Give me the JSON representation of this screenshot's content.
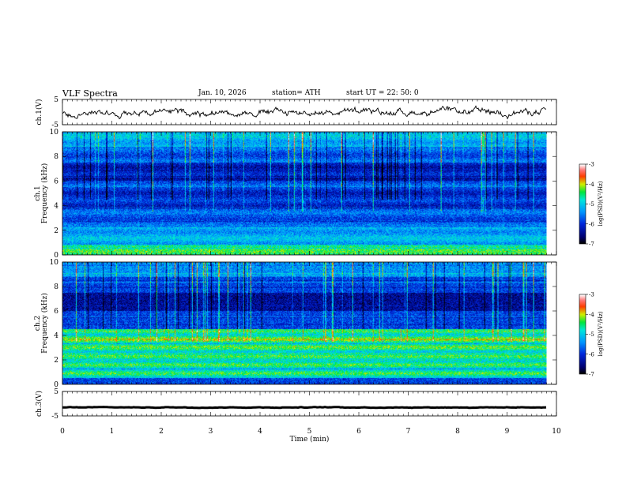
{
  "header": {
    "title": "VLF  Spectra",
    "date": "Jan. 10, 2026",
    "station": "station= ATH",
    "start": "start  UT  =   22: 50: 0"
  },
  "chart_data": {
    "type": "heatmap",
    "xlabel": "Time  (min)",
    "xlim": [
      0,
      10
    ],
    "xticks": [
      "0",
      "1",
      "2",
      "3",
      "4",
      "5",
      "6",
      "7",
      "8",
      "9",
      "10"
    ],
    "panels": [
      {
        "name": "ch1-waveform",
        "type": "line",
        "ylabel": "ch.1(V)",
        "ylim": [
          -5,
          5
        ],
        "yticks": [
          "5",
          "-5"
        ],
        "mean": 0,
        "amplitude": 1.4
      },
      {
        "name": "ch1-spectrogram",
        "type": "heatmap",
        "ylabel_top": "ch.1",
        "ylabel": "Frequency  (kHz)",
        "ylim": [
          0,
          10
        ],
        "yticks": [
          "0",
          "2",
          "4",
          "6",
          "8",
          "10"
        ]
      },
      {
        "name": "ch2-spectrogram",
        "type": "heatmap",
        "ylabel_top": "ch.2",
        "ylabel": "Frequency  (kHz)",
        "ylim": [
          0,
          10
        ],
        "yticks": [
          "0",
          "2",
          "4",
          "6",
          "8",
          "10"
        ]
      },
      {
        "name": "ch3-waveform",
        "type": "line",
        "ylabel": "ch.3(V)",
        "ylim": [
          -5,
          5
        ],
        "yticks": [
          "5",
          "-5"
        ],
        "mean": -1.5,
        "amplitude": 0.15
      }
    ],
    "colorbar": {
      "label": "log(PSD)(V²/Hz)",
      "range": [
        -7,
        -3
      ],
      "ticks": [
        "-3",
        "-4",
        "-5",
        "-6",
        "-7"
      ]
    },
    "data_end_min": 9.8
  },
  "colors": {
    "background": "#ffffff",
    "axis": "#000000",
    "trace": "#000000"
  }
}
